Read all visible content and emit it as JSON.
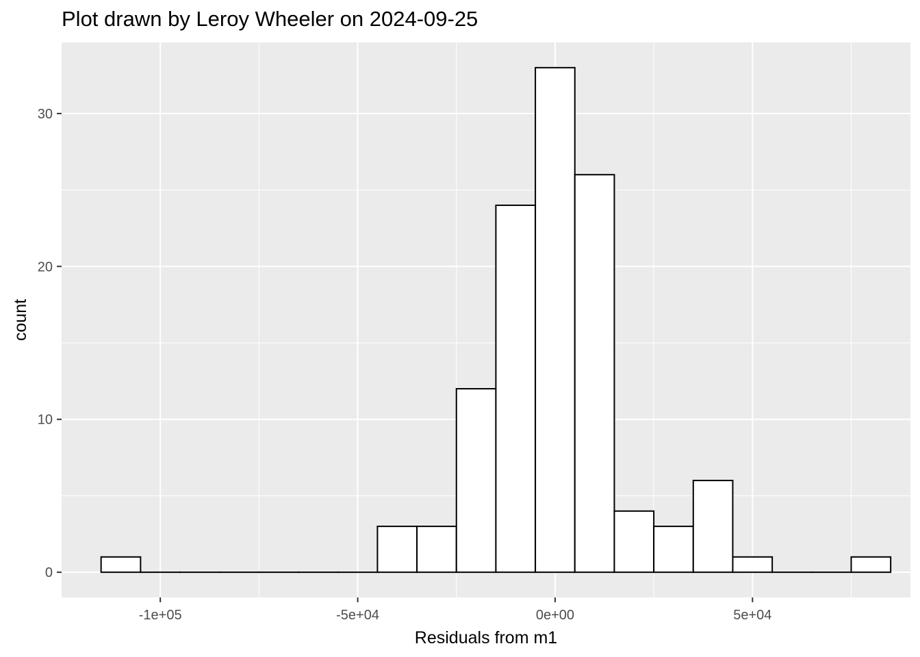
{
  "chart_data": {
    "type": "bar",
    "subtype": "histogram",
    "title": "Plot drawn by Leroy Wheeler on 2024-09-25",
    "xlabel": "Residuals from m1",
    "ylabel": "count",
    "bin_width": 10000,
    "bins": [
      {
        "start": -115000,
        "end": -105000,
        "count": 1
      },
      {
        "start": -105000,
        "end": -95000,
        "count": 0
      },
      {
        "start": -95000,
        "end": -85000,
        "count": 0
      },
      {
        "start": -85000,
        "end": -75000,
        "count": 0
      },
      {
        "start": -75000,
        "end": -65000,
        "count": 0
      },
      {
        "start": -65000,
        "end": -55000,
        "count": 0
      },
      {
        "start": -55000,
        "end": -45000,
        "count": 0
      },
      {
        "start": -45000,
        "end": -35000,
        "count": 3
      },
      {
        "start": -35000,
        "end": -25000,
        "count": 3
      },
      {
        "start": -25000,
        "end": -15000,
        "count": 12
      },
      {
        "start": -15000,
        "end": -5000,
        "count": 24
      },
      {
        "start": -5000,
        "end": 5000,
        "count": 33
      },
      {
        "start": 5000,
        "end": 15000,
        "count": 26
      },
      {
        "start": 15000,
        "end": 25000,
        "count": 4
      },
      {
        "start": 25000,
        "end": 35000,
        "count": 3
      },
      {
        "start": 35000,
        "end": 45000,
        "count": 6
      },
      {
        "start": 45000,
        "end": 55000,
        "count": 1
      },
      {
        "start": 55000,
        "end": 65000,
        "count": 0
      },
      {
        "start": 65000,
        "end": 75000,
        "count": 0
      },
      {
        "start": 75000,
        "end": 85000,
        "count": 1
      }
    ],
    "xlim": [
      -125000,
      90000
    ],
    "ylim": [
      -1.65,
      34.65
    ],
    "x_ticks": [
      {
        "value": -100000,
        "label": "-1e+05"
      },
      {
        "value": -50000,
        "label": "-5e+04"
      },
      {
        "value": 0,
        "label": "0e+00"
      },
      {
        "value": 50000,
        "label": "5e+04"
      }
    ],
    "x_minor_ticks": [
      -75000,
      -25000,
      25000,
      75000
    ],
    "y_ticks": [
      {
        "value": 0,
        "label": "0"
      },
      {
        "value": 10,
        "label": "10"
      },
      {
        "value": 20,
        "label": "20"
      },
      {
        "value": 30,
        "label": "30"
      }
    ],
    "y_minor_ticks": [
      5,
      15,
      25
    ],
    "grid": true,
    "legend": "none",
    "colors": {
      "panel_background": "#ebebeb",
      "grid": "#ffffff",
      "bar_fill": "#ffffff",
      "bar_outline": "#000000",
      "tick_label": "#4d4d4d",
      "tick_mark": "#333333"
    }
  }
}
